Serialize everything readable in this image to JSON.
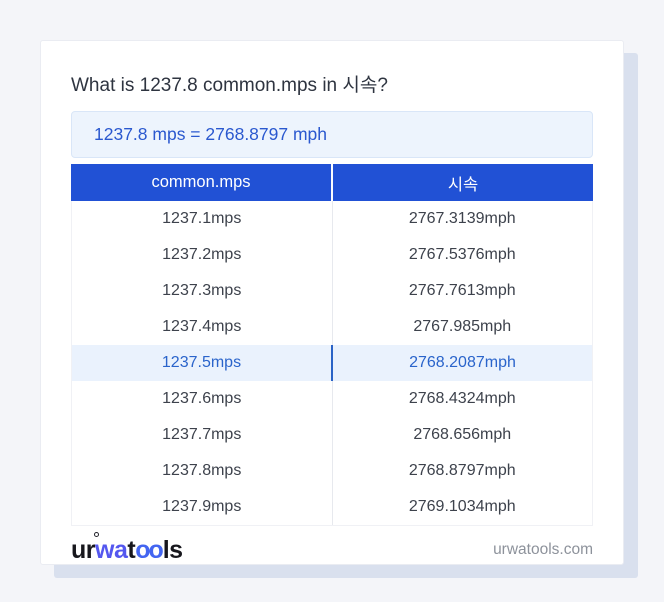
{
  "header": {
    "title": "What is 1237.8 common.mps in 시속?"
  },
  "result": {
    "text": "1237.8 mps = 2768.8797 mph"
  },
  "table": {
    "columns": [
      "common.mps",
      "시속"
    ],
    "highlight_index": 4,
    "rows": [
      [
        "1237.1mps",
        "2767.3139mph"
      ],
      [
        "1237.2mps",
        "2767.5376mph"
      ],
      [
        "1237.3mps",
        "2767.7613mph"
      ],
      [
        "1237.4mps",
        "2767.985mph"
      ],
      [
        "1237.5mps",
        "2768.2087mph"
      ],
      [
        "1237.6mps",
        "2768.4324mph"
      ],
      [
        "1237.7mps",
        "2768.656mph"
      ],
      [
        "1237.8mps",
        "2768.8797mph"
      ],
      [
        "1237.9mps",
        "2769.1034mph"
      ]
    ]
  },
  "footer": {
    "logo": {
      "ur": "ur",
      "wa": "wa",
      "t": "t",
      "oo": "oo",
      "ls": "ls"
    },
    "domain": "urwatools.com"
  },
  "colors": {
    "header_blue": "#2151d5",
    "highlight_bg": "#eaf2fd",
    "highlight_text": "#2a64cb",
    "result_text": "#2a58cf",
    "shadow_color": "#d9e0ee",
    "logo_accent": "#5457ef",
    "logo_accent2": "#4365f1"
  }
}
